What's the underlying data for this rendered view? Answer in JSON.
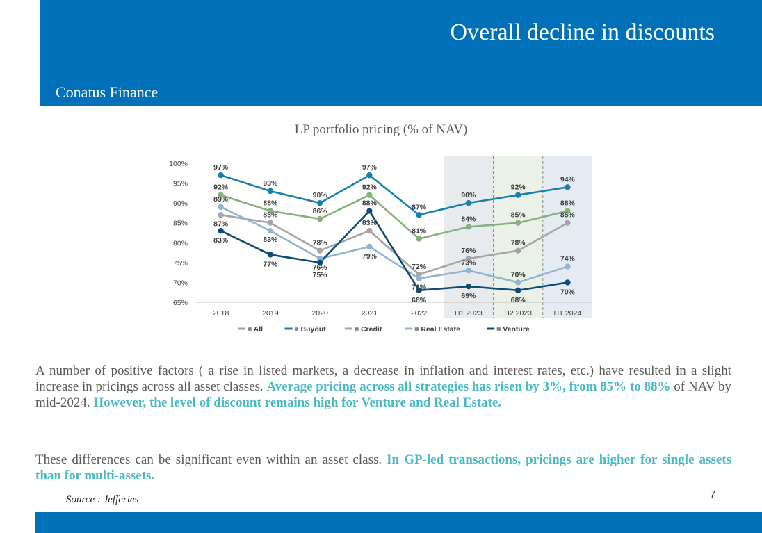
{
  "header": {
    "title": "Overall decline in discounts",
    "brand": "Conatus Finance"
  },
  "chart_data": {
    "type": "line",
    "title": "LP portfolio pricing (% of NAV)",
    "categories": [
      "2018",
      "2019",
      "2020",
      "2021",
      "2022",
      "H1 2023",
      "H2 2023",
      "H1 2024"
    ],
    "ylim": [
      65,
      100
    ],
    "yticks": [
      "65%",
      "70%",
      "75%",
      "80%",
      "85%",
      "90%",
      "95%",
      "100%"
    ],
    "grid": false,
    "legend_position": "bottom",
    "shaded_categories": [
      "H1 2023",
      "H2 2023",
      "H1 2024"
    ],
    "shade_colors": [
      "#e8ebed",
      "#eaf1e6",
      "#e4ebf3"
    ],
    "series": [
      {
        "name": "All",
        "legend_label": "= All",
        "color": "#86b07c",
        "values": [
          92,
          88,
          86,
          92,
          81,
          84,
          85,
          88
        ],
        "labels": [
          "92%",
          "88%",
          "86%",
          "92%",
          "81%",
          "84%",
          "85%",
          "88%"
        ]
      },
      {
        "name": "Buyout",
        "legend_label": "= Buyout",
        "color": "#1a7fae",
        "values": [
          97,
          93,
          90,
          97,
          87,
          90,
          92,
          94
        ],
        "labels": [
          "97%",
          "93%",
          "90%",
          "97%",
          "87%",
          "90%",
          "92%",
          "94%"
        ]
      },
      {
        "name": "Credit",
        "legend_label": "= Credit",
        "color": "#a5a5a5",
        "values": [
          87,
          85,
          78,
          83,
          72,
          76,
          78,
          85
        ],
        "labels": [
          "87%",
          "85%",
          "78%",
          "83%",
          "72%",
          "76%",
          "78%",
          "85%"
        ]
      },
      {
        "name": "Real Estate",
        "legend_label": "= Real Estate",
        "color": "#92b4d2",
        "values": [
          89,
          83,
          76,
          79,
          71,
          73,
          70,
          74
        ],
        "labels": [
          "89%",
          "83%",
          "76%",
          "79%",
          "71%",
          "73%",
          "70%",
          "74%"
        ]
      },
      {
        "name": "Venture",
        "legend_label": "= Venture",
        "color": "#0f4c75",
        "values": [
          83,
          77,
          75,
          88,
          68,
          69,
          68,
          70
        ],
        "labels": [
          "83%",
          "77%",
          "75%",
          "88%",
          "68%",
          "69%",
          "68%",
          "70%"
        ]
      }
    ]
  },
  "body": {
    "p1_a": "A number of positive factors ( a rise in listed markets, a decrease in inflation and interest rates, etc.) have resulted in a slight increase in pricings across all asset classes. ",
    "p1_b": "Average pricing across all strategies has risen by 3%, from 85% to 88%",
    "p1_c": " of NAV by mid-2024. ",
    "p1_d": "However, the level of discount remains high for Venture and Real Estate.",
    "p2_a": "These differences can be significant even within an asset class. ",
    "p2_b": "In GP-led transactions, pricings are higher for single assets than for multi-assets."
  },
  "source": "Source : Jefferies",
  "page_number": "7"
}
